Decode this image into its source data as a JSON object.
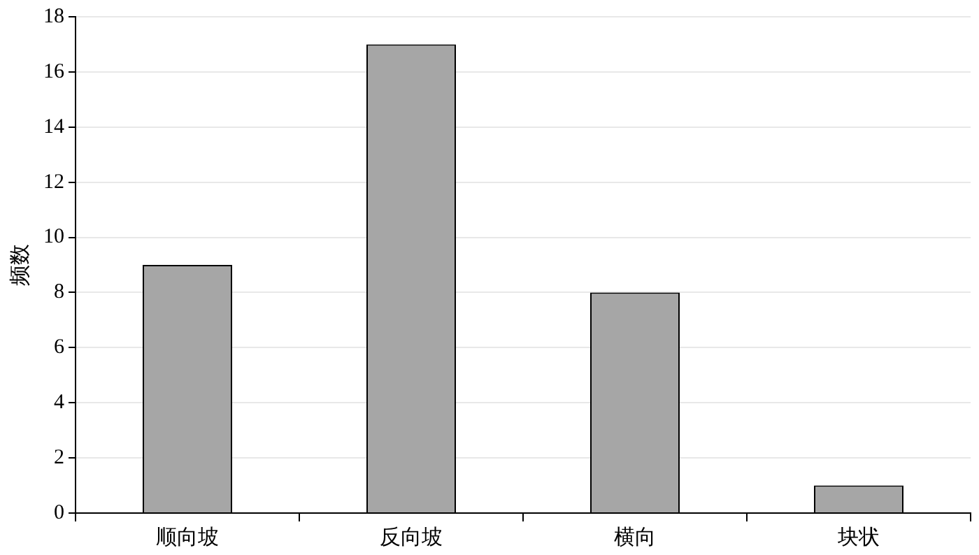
{
  "chart_data": {
    "type": "bar",
    "ylabel": "频数",
    "categories": [
      "顺向坡",
      "反向坡",
      "横向",
      "块状"
    ],
    "series": [
      {
        "color": "#a6a6a6",
        "values": [
          9,
          17,
          8,
          1
        ]
      }
    ],
    "ylim": [
      0,
      18
    ],
    "yticks": [
      0,
      2,
      4,
      6,
      8,
      10,
      12,
      14,
      16,
      18
    ],
    "grid": "y",
    "legend": false
  }
}
